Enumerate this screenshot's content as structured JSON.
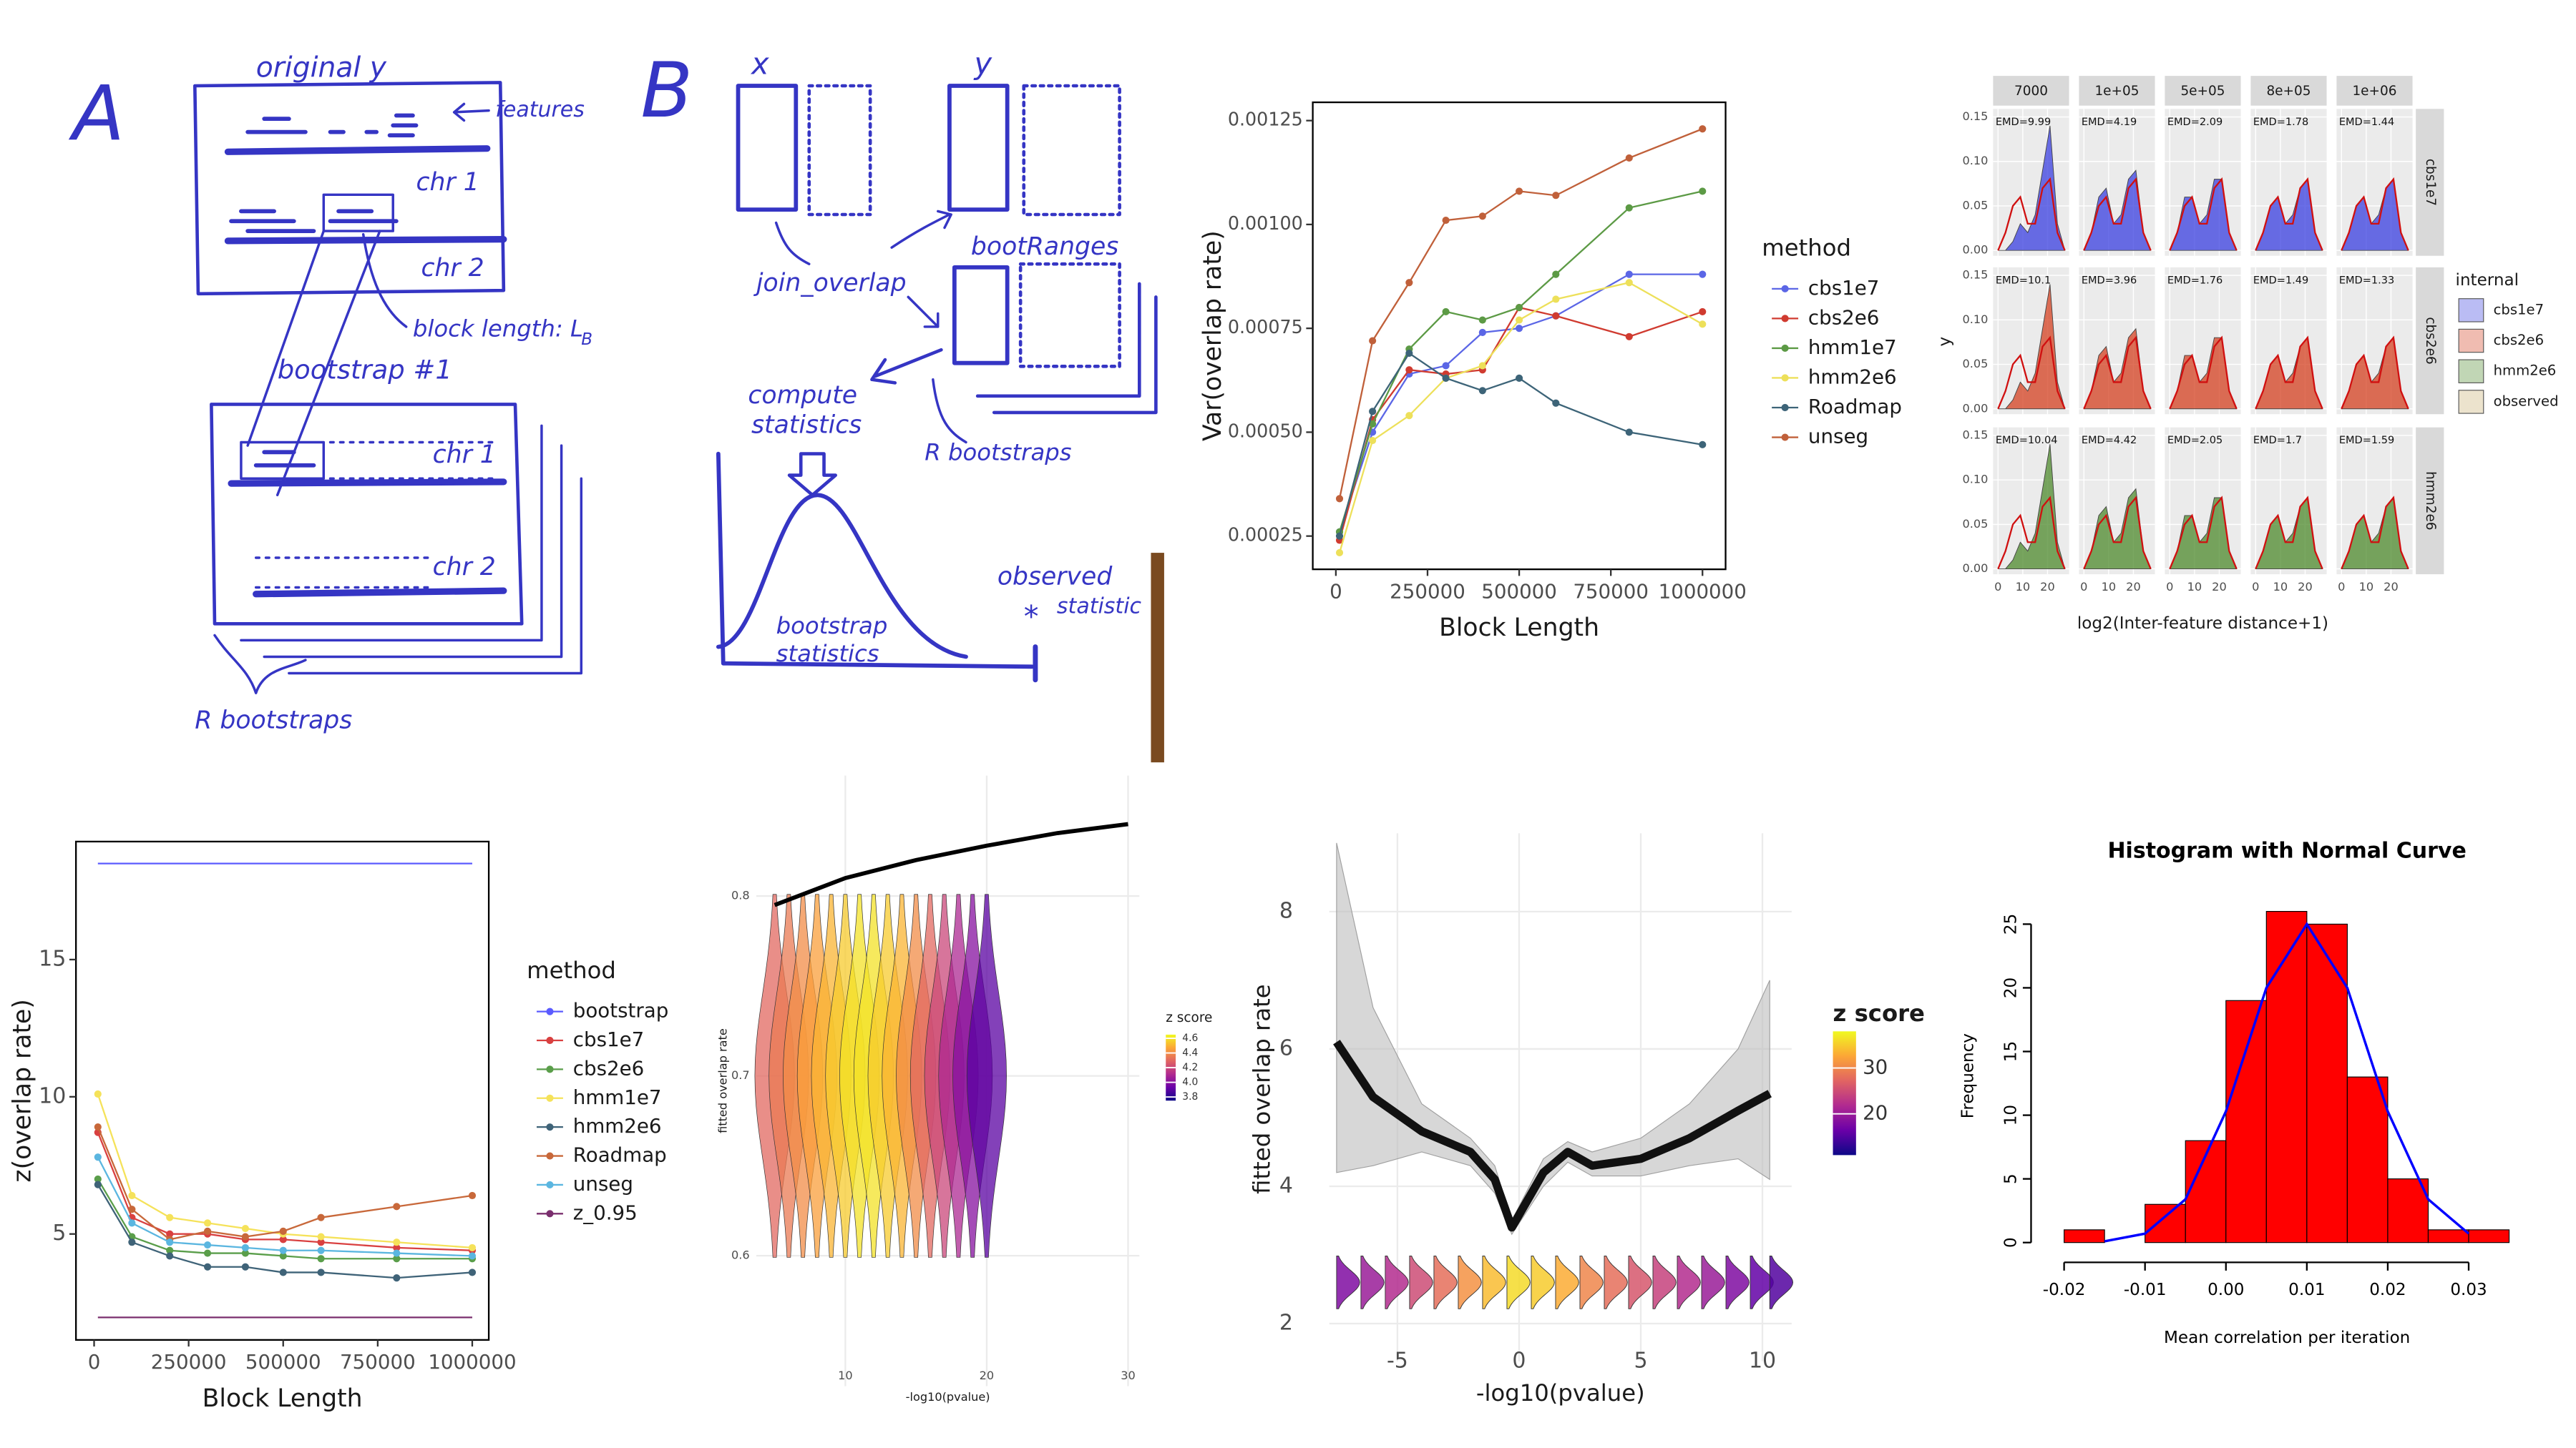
{
  "panel_a": {
    "label": "A",
    "title": "original y",
    "features": "features",
    "chr1": "chr 1",
    "chr2": "chr 2",
    "block_length": "block length: L",
    "block_length_sub": "B",
    "bootstrap": "bootstrap #1",
    "chr1_b": "chr 1",
    "chr2_b": "chr 2",
    "r_bootstraps": "R bootstraps"
  },
  "panel_b": {
    "label": "B",
    "x": "x",
    "y": "y",
    "join_overlap": "join_overlap",
    "boot_ranges": "bootRanges",
    "compute": [
      "compute",
      "statistics"
    ],
    "r_bootstraps": "R bootstraps",
    "bootstrap_statistics": [
      "bootstrap",
      "statistics"
    ],
    "observed": [
      "observed",
      "statistic"
    ]
  },
  "chart_data": [
    {
      "type": "line",
      "x": [
        10000,
        100000,
        200000,
        300000,
        400000,
        500000,
        600000,
        800000,
        1000000
      ],
      "xlim": [
        -63000,
        1063000
      ],
      "xticks": [
        0,
        250000,
        500000,
        750000,
        1000000
      ],
      "ylim": [
        0.00017,
        0.001294
      ],
      "yticks": [
        0.00025,
        {
          "value": 0.0005,
          "label": "0.00050"
        },
        0.00075,
        {
          "value": 0.001,
          "label": "0.00100"
        },
        0.00125
      ],
      "x_label": "Block Length",
      "y_label": "Var(overlap rate)",
      "legend_title": "method",
      "series": [
        {
          "name": "cbs1e7",
          "color": "#5b66e6",
          "values": [
            0.00026,
            0.0005,
            0.00064,
            0.00066,
            0.00074,
            0.00075,
            0.00078,
            0.00088,
            0.00088
          ]
        },
        {
          "name": "cbs2e6",
          "color": "#d03b30",
          "values": [
            0.00024,
            0.00053,
            0.00065,
            0.00064,
            0.00065,
            0.0008,
            0.00078,
            0.00073,
            0.00079
          ]
        },
        {
          "name": "hmm1e7",
          "color": "#5c9a45",
          "values": [
            0.00026,
            0.00052,
            0.0007,
            0.00079,
            0.00077,
            0.0008,
            0.00088,
            0.00104,
            0.00108
          ]
        },
        {
          "name": "hmm2e6",
          "color": "#ede05a",
          "values": [
            0.00021,
            0.00048,
            0.00054,
            0.00063,
            0.00066,
            0.00077,
            0.00082,
            0.00086,
            0.00076
          ]
        },
        {
          "name": "Roadmap",
          "color": "#3d6478",
          "values": [
            0.00025,
            0.00055,
            0.00069,
            0.00063,
            0.0006,
            0.00063,
            0.00057,
            0.0005,
            0.00047
          ]
        },
        {
          "name": "unseg",
          "color": "#c0603a",
          "values": [
            0.00034,
            0.00072,
            0.00086,
            0.00101,
            0.00102,
            0.00108,
            0.00107,
            0.00116,
            0.00123
          ]
        }
      ]
    },
    {
      "type": "density",
      "columns": [
        "7000",
        "1e+05",
        "5e+05",
        "8e+05",
        "1e+06"
      ],
      "rows": [
        "cbs1e7",
        "cbs2e6",
        "hmm2e6"
      ],
      "annotations": [
        [
          "EMD=9.99",
          "EMD=4.19",
          "EMD=2.09",
          "EMD=1.78",
          "EMD=1.44"
        ],
        [
          "EMD=10.1",
          "EMD=3.96",
          "EMD=1.76",
          "EMD=1.49",
          "EMD=1.33"
        ],
        [
          "EMD=10.04",
          "EMD=4.42",
          "EMD=2.05",
          "EMD=1.7",
          "EMD=1.59"
        ]
      ],
      "x": [
        0,
        3,
        6,
        9,
        12,
        15,
        18,
        21,
        24,
        27
      ],
      "xlim": [
        -2,
        28.7
      ],
      "xticks": [
        0,
        10,
        20
      ],
      "ylim": [
        -0.006,
        0.159
      ],
      "yticks": [
        {
          "value": 0,
          "label": "0.00"
        },
        0.05,
        {
          "value": 0.1,
          "label": "0.10"
        },
        0.15
      ],
      "internal": [
        [
          0,
          0,
          0.01,
          0.03,
          0.02,
          0.04,
          0.09,
          0.14,
          0.03,
          0
        ],
        [
          0,
          0.02,
          0.06,
          0.07,
          0.03,
          0.04,
          0.08,
          0.09,
          0.02,
          0
        ],
        [
          0,
          0.02,
          0.06,
          0.06,
          0.03,
          0.04,
          0.08,
          0.08,
          0.02,
          0
        ],
        [
          0,
          0.02,
          0.05,
          0.06,
          0.03,
          0.04,
          0.07,
          0.08,
          0.02,
          0
        ],
        [
          0,
          0.02,
          0.05,
          0.06,
          0.03,
          0.04,
          0.07,
          0.08,
          0.02,
          0
        ]
      ],
      "observed": [
        0,
        0.02,
        0.05,
        0.06,
        0.03,
        0.03,
        0.07,
        0.08,
        0.02,
        0
      ],
      "observed_color": "#d01010",
      "x_label": "log2(Inter-feature distance+1)",
      "y_label": "y",
      "legend_title": "internal",
      "legend": [
        {
          "name": "cbs1e7",
          "color": "#3a3fe0"
        },
        {
          "name": "cbs2e6",
          "color": "#d44020"
        },
        {
          "name": "hmm2e6",
          "color": "#4e8a2c"
        },
        {
          "name": "observed",
          "color": "#c8b070"
        }
      ]
    },
    {
      "type": "line",
      "x": [
        10000,
        100000,
        200000,
        300000,
        400000,
        500000,
        600000,
        800000,
        1000000
      ],
      "xlim": [
        -48000,
        1043700
      ],
      "xticks": [
        0,
        250000,
        500000,
        750000,
        1000000
      ],
      "ylim": [
        1.14,
        19.3
      ],
      "yticks": [
        5,
        10,
        15
      ],
      "x_label": "Block Length",
      "y_label": "z(overlap rate)",
      "legend_title": "method",
      "series": [
        {
          "name": "bootstrap",
          "color": "#5b5bff",
          "markers": false,
          "values": [
            18.5,
            18.5,
            18.5,
            18.5,
            18.5,
            18.5,
            18.5,
            18.5,
            18.5
          ]
        },
        {
          "name": "cbs1e7",
          "color": "#d94040",
          "values": [
            8.7,
            5.6,
            5.0,
            5.0,
            4.8,
            4.8,
            4.7,
            4.5,
            4.4
          ]
        },
        {
          "name": "cbs2e6",
          "color": "#5a9e4a",
          "values": [
            7.0,
            4.9,
            4.4,
            4.3,
            4.3,
            4.2,
            4.1,
            4.1,
            4.1
          ]
        },
        {
          "name": "hmm1e7",
          "color": "#f5e25a",
          "values": [
            10.1,
            6.4,
            5.6,
            5.4,
            5.2,
            5.0,
            4.9,
            4.7,
            4.5
          ]
        },
        {
          "name": "hmm2e6",
          "color": "#3f6378",
          "values": [
            6.8,
            4.7,
            4.2,
            3.8,
            3.8,
            3.6,
            3.6,
            3.4,
            3.6
          ]
        },
        {
          "name": "Roadmap",
          "color": "#c8683a",
          "values": [
            8.9,
            5.9,
            4.8,
            5.1,
            4.9,
            5.1,
            5.6,
            6.0,
            6.4
          ]
        },
        {
          "name": "unseg",
          "color": "#5bb6e0",
          "values": [
            7.8,
            5.4,
            4.7,
            4.6,
            4.5,
            4.4,
            4.4,
            4.3,
            4.2
          ]
        },
        {
          "name": "z_0.95",
          "color": "#7a2f6e",
          "markers": false,
          "values": [
            1.96,
            1.96,
            1.96,
            1.96,
            1.96,
            1.96,
            1.96,
            1.96,
            1.96
          ]
        }
      ]
    },
    {
      "type": "violin",
      "x": [
        5,
        6,
        7,
        8,
        9,
        10,
        11,
        12,
        13,
        14,
        15,
        16,
        17,
        18,
        19,
        20
      ],
      "values": [
        0.7,
        0.7,
        0.7,
        0.7,
        0.7,
        0.7,
        0.7,
        0.7,
        0.7,
        0.7,
        0.7,
        0.7,
        0.7,
        0.7,
        0.7,
        0.7
      ],
      "z": [
        4.3,
        4.35,
        4.4,
        4.45,
        4.5,
        4.55,
        4.6,
        4.6,
        4.55,
        4.5,
        4.4,
        4.3,
        4.2,
        4.1,
        4.0,
        3.9
      ],
      "zlim": [
        3.75,
        4.65
      ],
      "zticks": [
        3.8,
        {
          "value": 4,
          "label": "4.0"
        },
        4.2,
        4.4,
        4.6
      ],
      "line": {
        "x": [
          5,
          10,
          15,
          20,
          25,
          30
        ],
        "values": [
          0.795,
          0.81,
          0.82,
          0.828,
          0.835,
          0.84
        ]
      },
      "xlim": [
        3.7,
        30.8
      ],
      "xticks": [
        10,
        20,
        30
      ],
      "ylim": [
        0.5275,
        0.867
      ],
      "yticks": [
        0.6,
        0.7,
        0.8
      ],
      "x_label": "-log10(pvalue)",
      "y_label": "fitted overlap rate",
      "legend_title": "z score"
    },
    {
      "type": "smooth",
      "x": [
        -7.5,
        -6,
        -4,
        -2,
        -1,
        -0.3,
        1,
        2,
        3,
        5,
        7,
        9,
        10.3
      ],
      "values": [
        6.1,
        5.3,
        4.8,
        4.5,
        4.1,
        3.4,
        4.2,
        4.5,
        4.3,
        4.4,
        4.7,
        5.1,
        5.35
      ],
      "lower": [
        4.2,
        4.3,
        4.5,
        4.3,
        3.9,
        3.3,
        4.0,
        4.35,
        4.15,
        4.15,
        4.3,
        4.4,
        4.1
      ],
      "upper": [
        9.0,
        6.6,
        5.2,
        4.7,
        4.3,
        3.5,
        4.4,
        4.65,
        4.5,
        4.7,
        5.2,
        6.0,
        7.0
      ],
      "violins": {
        "x": [
          -7.5,
          -6.5,
          -5.5,
          -4.5,
          -3.5,
          -2.5,
          -1.5,
          -0.5,
          0.5,
          1.5,
          2.5,
          3.5,
          4.5,
          5.5,
          6.5,
          7.5,
          8.5,
          9.5,
          10.3
        ],
        "values": [
          2.6,
          2.6,
          2.6,
          2.6,
          2.6,
          2.6,
          2.6,
          2.6,
          2.6,
          2.6,
          2.6,
          2.6,
          2.6,
          2.6,
          2.6,
          2.6,
          2.6,
          2.6,
          2.6
        ],
        "z": [
          18,
          20,
          22,
          25,
          28,
          31,
          34,
          36,
          35,
          33,
          30,
          28,
          26,
          24,
          22,
          20,
          18,
          16,
          15
        ]
      },
      "zlim": [
        11,
        38
      ],
      "zticks": [
        20,
        30
      ],
      "xlim": [
        -7.8,
        11.2
      ],
      "xticks": [
        -5,
        0,
        5,
        10
      ],
      "ylim": [
        1.45,
        9.14
      ],
      "yticks": [
        2,
        4,
        6,
        8
      ],
      "x_label": "-log10(pvalue)",
      "y_label": "fitted overlap rate",
      "legend_title": "z score"
    },
    {
      "type": "histogram",
      "title": "Histogram with Normal Curve",
      "bins": [
        -0.02,
        -0.015,
        -0.01,
        -0.005,
        0,
        0.005,
        0.01,
        0.015,
        0.02,
        0.025,
        0.03,
        0.035
      ],
      "counts": [
        1,
        0,
        3,
        8,
        19,
        26,
        25,
        13,
        5,
        1,
        1
      ],
      "color": "#ff0000",
      "curve": {
        "x": [
          -0.015,
          -0.01,
          -0.005,
          0,
          0.005,
          0.01,
          0.015,
          0.02,
          0.025,
          0.03
        ],
        "values": [
          0.1,
          0.7,
          3.4,
          10.3,
          20,
          25,
          20,
          10.3,
          3.4,
          0.7
        ],
        "color": "#0000ff"
      },
      "xlim": [
        -0.02,
        0.035
      ],
      "xticks": [
        -0.02,
        -0.01,
        {
          "value": 0,
          "label": "0.00"
        },
        0.01,
        0.02,
        0.03
      ],
      "ylim": [
        0,
        27
      ],
      "yticks": [
        0,
        5,
        10,
        15,
        20,
        25
      ],
      "x_label": "Mean correlation per iteration",
      "y_label": "Frequency"
    }
  ]
}
